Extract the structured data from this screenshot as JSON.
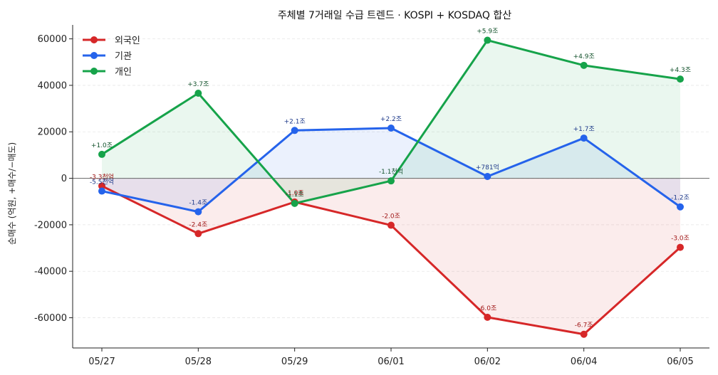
{
  "chart_data": {
    "type": "line",
    "title": "주체별 7거래일 수급 트렌드 · KOSPI + KOSDAQ 합산",
    "xlabel": "",
    "ylabel": "순매수 (억원, +매수/−매도)",
    "categories": [
      "05/27",
      "05/28",
      "05/29",
      "06/01",
      "06/02",
      "06/04",
      "06/05"
    ],
    "ylim": [
      -73000,
      66000
    ],
    "yticks": [
      -60000,
      -40000,
      -20000,
      0,
      20000,
      40000,
      60000
    ],
    "grid": "horizontal dashed",
    "legend_position": "top-left",
    "series": [
      {
        "name": "외국인",
        "color": "#d62728",
        "label_color": "#a01818",
        "values": [
          -3300,
          -23800,
          -10200,
          -20200,
          -59800,
          -67100,
          -29700
        ],
        "labels": [
          "-3.3천억",
          "-2.4조",
          "-1.0조",
          "-2.0조",
          "-6.0조",
          "-6.7조",
          "-3.0조"
        ]
      },
      {
        "name": "기관",
        "color": "#2563eb",
        "label_color": "#1e3a8a",
        "values": [
          -5500,
          -14400,
          20600,
          21600,
          781,
          17300,
          -12300
        ],
        "labels": [
          "-5.5천억",
          "-1.4조",
          "+2.1조",
          "+2.2조",
          "+781억",
          "+1.7조",
          "-1.2조"
        ]
      },
      {
        "name": "개인",
        "color": "#16a34a",
        "label_color": "#14532d",
        "values": [
          10300,
          36600,
          -10800,
          -1100,
          59400,
          48600,
          42700
        ],
        "labels": [
          "+1.0조",
          "+3.7조",
          "-1.1조",
          "-1.1천억",
          "+5.9조",
          "+4.9조",
          "+4.3조"
        ]
      }
    ]
  }
}
